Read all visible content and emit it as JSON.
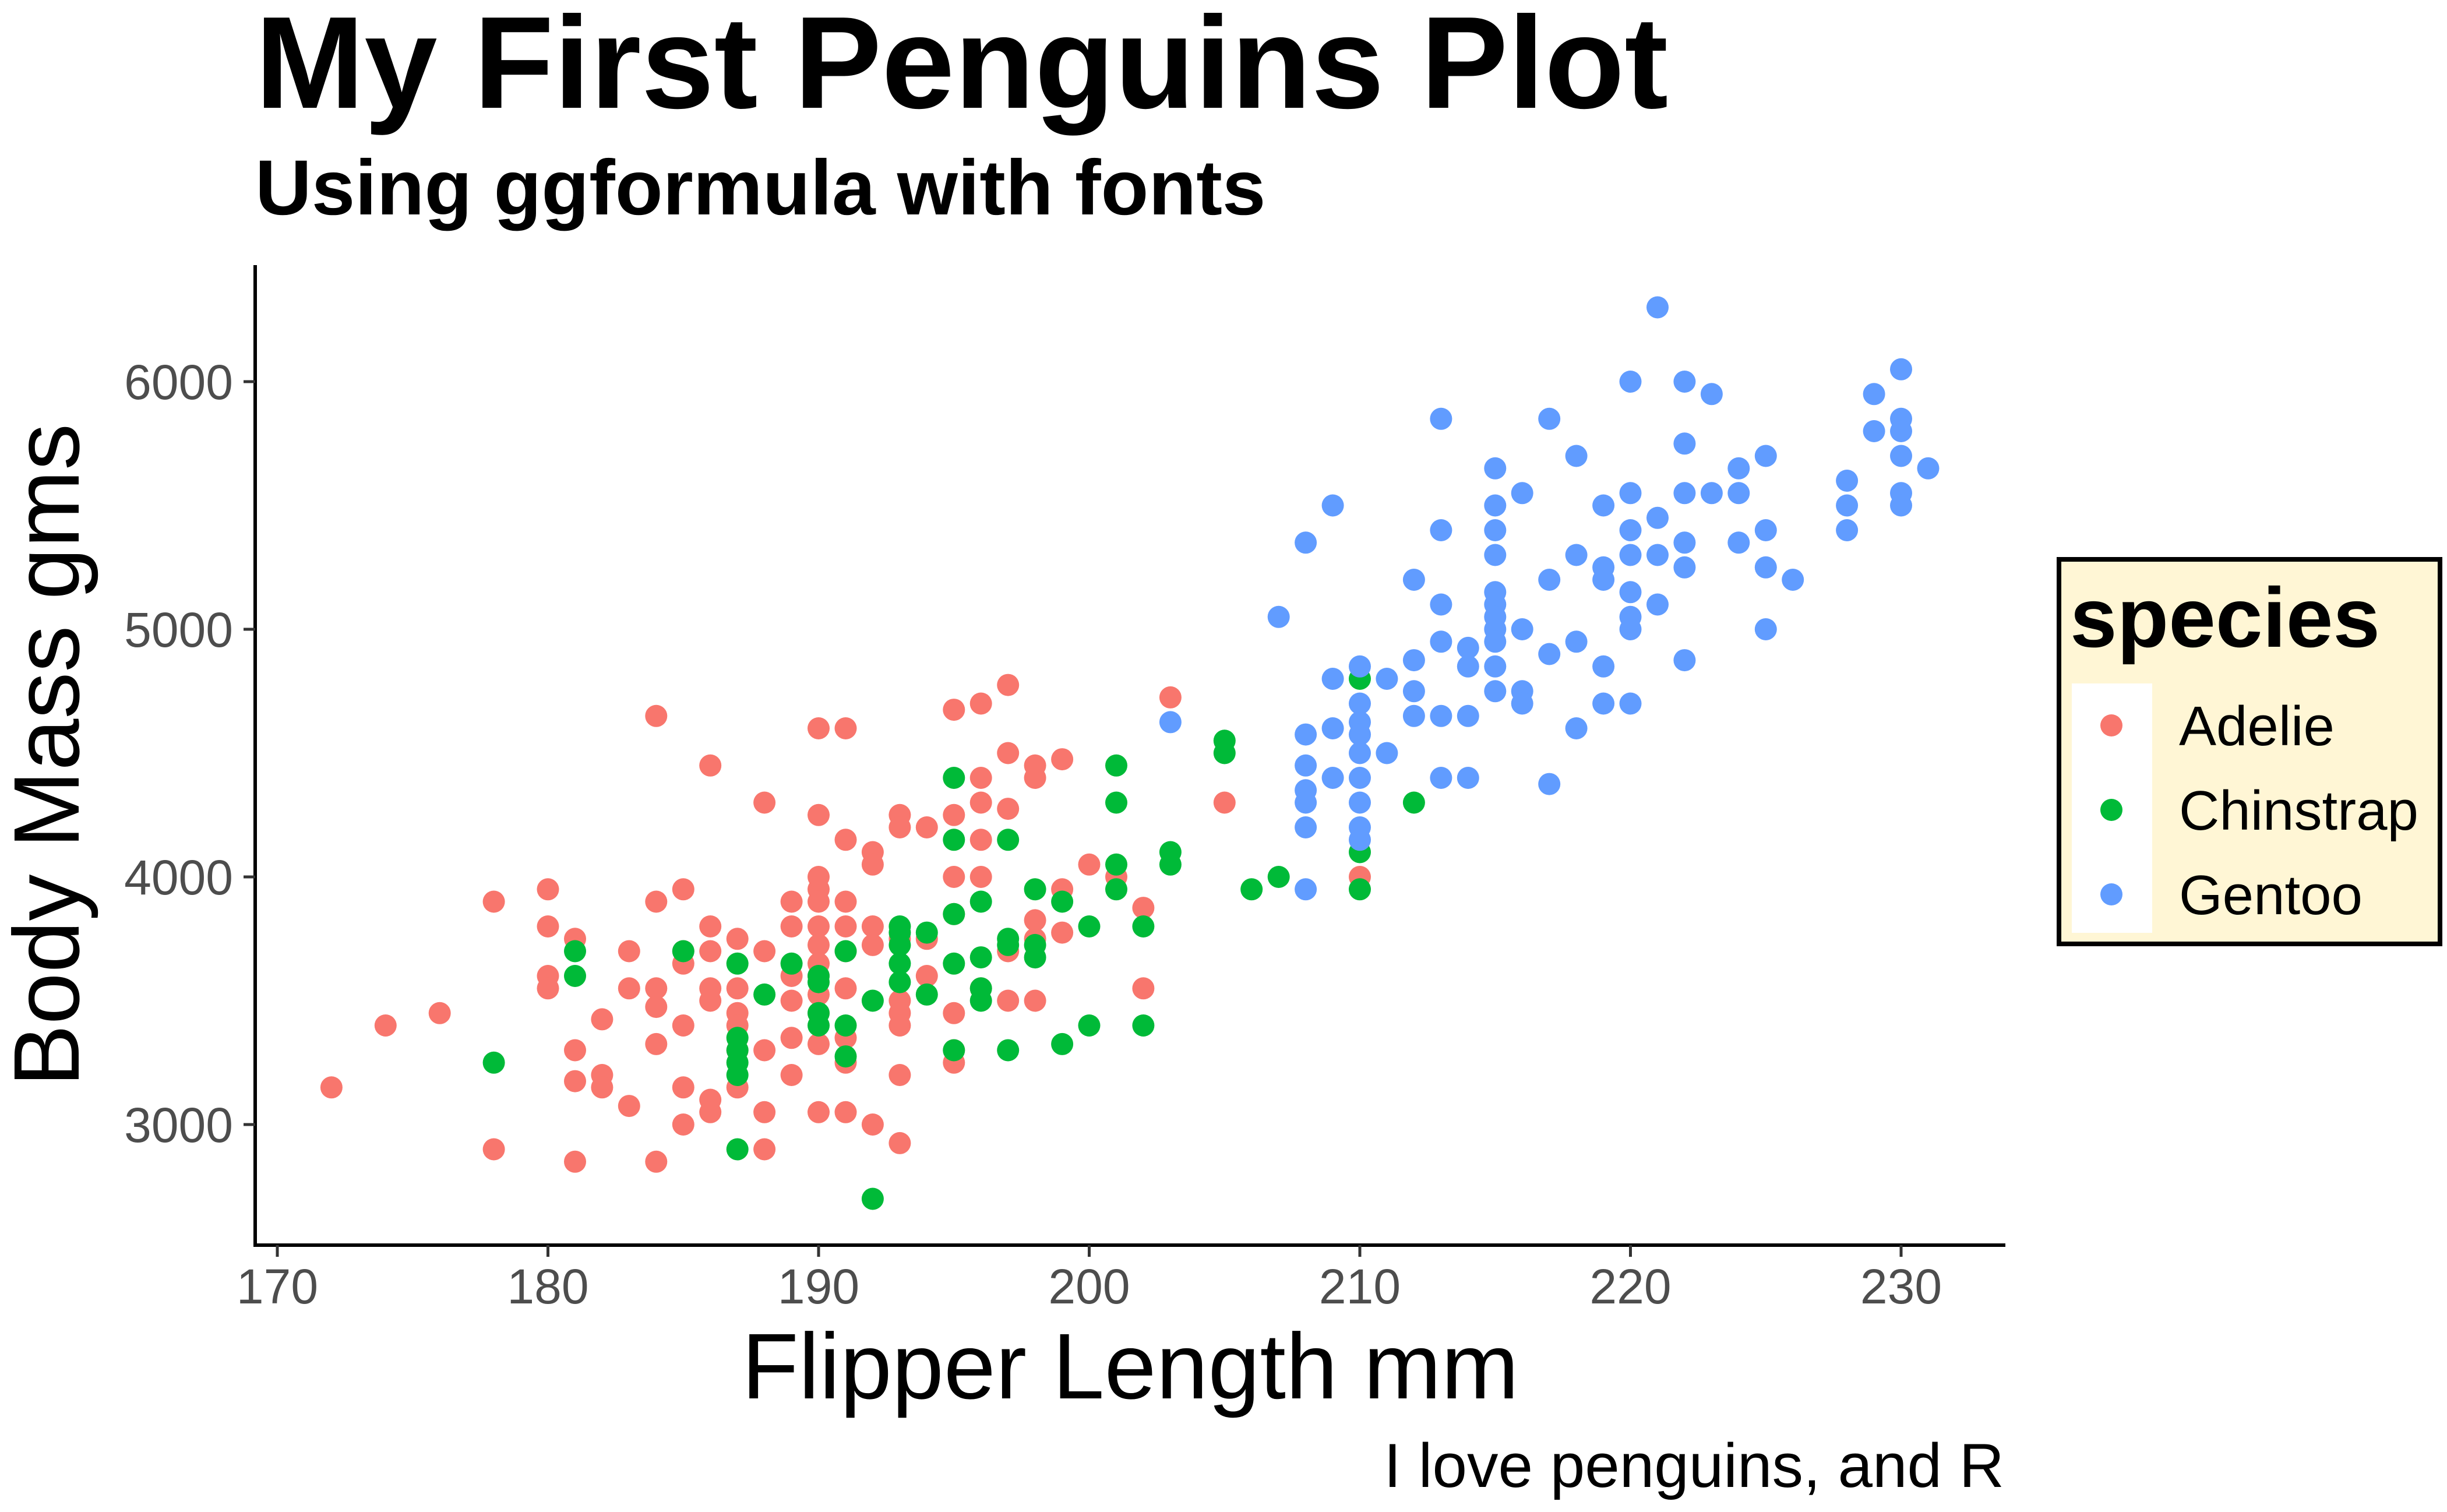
{
  "chart_data": {
    "type": "scatter",
    "title": "My First Penguins Plot",
    "subtitle": "Using ggformula with fonts",
    "caption": "I love penguins, and R",
    "xlabel": "Flipper Length mm",
    "ylabel": "Body Mass gms",
    "xlim": [
      169,
      234
    ],
    "ylim": [
      2550,
      6500
    ],
    "xticks": [
      170,
      180,
      190,
      200,
      210,
      220,
      230
    ],
    "yticks": [
      3000,
      4000,
      5000,
      6000
    ],
    "grid": false,
    "legend": {
      "title": "species",
      "position": "right",
      "background": "#fff6d5"
    },
    "series": [
      {
        "name": "Adelie",
        "color": "#f8766d",
        "points": [
          [
            172,
            3150
          ],
          [
            174,
            3400
          ],
          [
            176,
            3450
          ],
          [
            178,
            3900
          ],
          [
            178,
            2900
          ],
          [
            180,
            3950
          ],
          [
            180,
            3800
          ],
          [
            180,
            3600
          ],
          [
            180,
            3550
          ],
          [
            181,
            3750
          ],
          [
            181,
            3300
          ],
          [
            181,
            3175
          ],
          [
            181,
            2850
          ],
          [
            182,
            3425
          ],
          [
            182,
            3200
          ],
          [
            182,
            3150
          ],
          [
            183,
            3550
          ],
          [
            183,
            3075
          ],
          [
            184,
            4650
          ],
          [
            184,
            3900
          ],
          [
            184,
            3550
          ],
          [
            184,
            3475
          ],
          [
            184,
            3325
          ],
          [
            184,
            2850
          ],
          [
            185,
            3950
          ],
          [
            185,
            3700
          ],
          [
            185,
            3650
          ],
          [
            185,
            3400
          ],
          [
            185,
            3150
          ],
          [
            185,
            3000
          ],
          [
            186,
            4450
          ],
          [
            186,
            3800
          ],
          [
            186,
            3550
          ],
          [
            186,
            3500
          ],
          [
            186,
            3100
          ],
          [
            186,
            3050
          ],
          [
            187,
            3750
          ],
          [
            187,
            3550
          ],
          [
            187,
            3450
          ],
          [
            187,
            3300
          ],
          [
            187,
            3150
          ],
          [
            188,
            4300
          ],
          [
            188,
            3300
          ],
          [
            188,
            2900
          ],
          [
            188,
            3050
          ],
          [
            189,
            3900
          ],
          [
            189,
            3800
          ],
          [
            189,
            3500
          ],
          [
            189,
            3350
          ],
          [
            189,
            3200
          ],
          [
            190,
            4600
          ],
          [
            190,
            4250
          ],
          [
            190,
            3950
          ],
          [
            190,
            3900
          ],
          [
            190,
            3800
          ],
          [
            190,
            3725
          ],
          [
            190,
            3650
          ],
          [
            190,
            3600
          ],
          [
            190,
            3525
          ],
          [
            190,
            3450
          ],
          [
            190,
            3325
          ],
          [
            190,
            3050
          ],
          [
            191,
            4600
          ],
          [
            191,
            4150
          ],
          [
            191,
            3900
          ],
          [
            191,
            3800
          ],
          [
            191,
            3700
          ],
          [
            191,
            3550
          ],
          [
            191,
            3350
          ],
          [
            191,
            3250
          ],
          [
            191,
            3050
          ],
          [
            192,
            4100
          ],
          [
            192,
            4050
          ],
          [
            192,
            3725
          ],
          [
            192,
            3000
          ],
          [
            193,
            4250
          ],
          [
            193,
            4200
          ],
          [
            193,
            3750
          ],
          [
            193,
            3500
          ],
          [
            193,
            3450
          ],
          [
            193,
            3400
          ],
          [
            193,
            3200
          ],
          [
            193,
            2925
          ],
          [
            194,
            4200
          ],
          [
            194,
            3750
          ],
          [
            195,
            4675
          ],
          [
            195,
            4250
          ],
          [
            195,
            4000
          ],
          [
            195,
            3850
          ],
          [
            195,
            3450
          ],
          [
            195,
            3300
          ],
          [
            195,
            3250
          ],
          [
            196,
            4700
          ],
          [
            196,
            4400
          ],
          [
            196,
            4300
          ],
          [
            196,
            4150
          ],
          [
            196,
            4000
          ],
          [
            196,
            3550
          ],
          [
            197,
            4775
          ],
          [
            197,
            4500
          ],
          [
            197,
            4275
          ],
          [
            197,
            3700
          ],
          [
            197,
            3500
          ],
          [
            198,
            4450
          ],
          [
            198,
            4400
          ],
          [
            198,
            3825
          ],
          [
            198,
            3750
          ],
          [
            198,
            3500
          ],
          [
            199,
            4475
          ],
          [
            199,
            3950
          ],
          [
            199,
            3775
          ],
          [
            200,
            4050
          ],
          [
            201,
            4000
          ],
          [
            202,
            3875
          ],
          [
            202,
            3550
          ],
          [
            203,
            4725
          ],
          [
            205,
            4300
          ],
          [
            210,
            4000
          ],
          [
            190,
            4000
          ],
          [
            187,
            3400
          ],
          [
            189,
            3600
          ],
          [
            186,
            3700
          ],
          [
            194,
            3600
          ],
          [
            183,
            3700
          ],
          [
            188,
            3700
          ],
          [
            192,
            3800
          ]
        ]
      },
      {
        "name": "Chinstrap",
        "color": "#00ba38",
        "points": [
          [
            178,
            3250
          ],
          [
            181,
            3700
          ],
          [
            181,
            3600
          ],
          [
            185,
            3700
          ],
          [
            187,
            3650
          ],
          [
            187,
            3350
          ],
          [
            187,
            3300
          ],
          [
            187,
            3250
          ],
          [
            187,
            3200
          ],
          [
            187,
            2900
          ],
          [
            188,
            3525
          ],
          [
            189,
            3650
          ],
          [
            190,
            3600
          ],
          [
            190,
            3575
          ],
          [
            190,
            3450
          ],
          [
            190,
            3400
          ],
          [
            191,
            3400
          ],
          [
            191,
            3700
          ],
          [
            191,
            3275
          ],
          [
            192,
            3500
          ],
          [
            192,
            2700
          ],
          [
            193,
            3800
          ],
          [
            193,
            3775
          ],
          [
            193,
            3725
          ],
          [
            193,
            3650
          ],
          [
            193,
            3575
          ],
          [
            194,
            3775
          ],
          [
            194,
            3525
          ],
          [
            195,
            4400
          ],
          [
            195,
            4150
          ],
          [
            195,
            3850
          ],
          [
            195,
            3650
          ],
          [
            195,
            3300
          ],
          [
            196,
            3900
          ],
          [
            196,
            3675
          ],
          [
            196,
            3550
          ],
          [
            196,
            3500
          ],
          [
            197,
            4150
          ],
          [
            197,
            3750
          ],
          [
            197,
            3725
          ],
          [
            197,
            3300
          ],
          [
            198,
            3950
          ],
          [
            198,
            3725
          ],
          [
            198,
            3675
          ],
          [
            199,
            3900
          ],
          [
            199,
            3325
          ],
          [
            200,
            3800
          ],
          [
            200,
            3400
          ],
          [
            201,
            4450
          ],
          [
            201,
            4300
          ],
          [
            201,
            4050
          ],
          [
            201,
            3950
          ],
          [
            202,
            3800
          ],
          [
            202,
            3400
          ],
          [
            203,
            4100
          ],
          [
            203,
            4050
          ],
          [
            205,
            4550
          ],
          [
            205,
            4500
          ],
          [
            206,
            3950
          ],
          [
            207,
            4000
          ],
          [
            210,
            4800
          ],
          [
            210,
            4100
          ],
          [
            210,
            3950
          ],
          [
            212,
            4300
          ]
        ]
      },
      {
        "name": "Gentoo",
        "color": "#619cff",
        "points": [
          [
            203,
            4625
          ],
          [
            207,
            5050
          ],
          [
            208,
            5350
          ],
          [
            208,
            4575
          ],
          [
            208,
            4450
          ],
          [
            208,
            4350
          ],
          [
            208,
            4300
          ],
          [
            208,
            4200
          ],
          [
            208,
            3950
          ],
          [
            209,
            5500
          ],
          [
            209,
            4800
          ],
          [
            209,
            4600
          ],
          [
            209,
            4400
          ],
          [
            210,
            4850
          ],
          [
            210,
            4700
          ],
          [
            210,
            4625
          ],
          [
            210,
            4575
          ],
          [
            210,
            4500
          ],
          [
            210,
            4400
          ],
          [
            210,
            4300
          ],
          [
            210,
            4200
          ],
          [
            210,
            4150
          ],
          [
            211,
            4800
          ],
          [
            211,
            4500
          ],
          [
            212,
            5200
          ],
          [
            212,
            4875
          ],
          [
            212,
            4750
          ],
          [
            212,
            4650
          ],
          [
            213,
            5850
          ],
          [
            213,
            5400
          ],
          [
            213,
            5100
          ],
          [
            213,
            4950
          ],
          [
            213,
            4650
          ],
          [
            213,
            4400
          ],
          [
            214,
            4925
          ],
          [
            214,
            4850
          ],
          [
            214,
            4650
          ],
          [
            214,
            4400
          ],
          [
            215,
            5650
          ],
          [
            215,
            5500
          ],
          [
            215,
            5400
          ],
          [
            215,
            5300
          ],
          [
            215,
            5150
          ],
          [
            215,
            5100
          ],
          [
            215,
            5050
          ],
          [
            215,
            5000
          ],
          [
            215,
            4950
          ],
          [
            215,
            4850
          ],
          [
            215,
            4750
          ],
          [
            216,
            5550
          ],
          [
            216,
            5000
          ],
          [
            216,
            4750
          ],
          [
            216,
            4700
          ],
          [
            217,
            5850
          ],
          [
            217,
            5200
          ],
          [
            217,
            4900
          ],
          [
            217,
            4375
          ],
          [
            218,
            5700
          ],
          [
            218,
            5300
          ],
          [
            218,
            4950
          ],
          [
            218,
            4600
          ],
          [
            219,
            5500
          ],
          [
            219,
            5250
          ],
          [
            219,
            5200
          ],
          [
            219,
            4850
          ],
          [
            219,
            4700
          ],
          [
            220,
            6000
          ],
          [
            220,
            5550
          ],
          [
            220,
            5400
          ],
          [
            220,
            5300
          ],
          [
            220,
            5150
          ],
          [
            220,
            5050
          ],
          [
            220,
            5000
          ],
          [
            220,
            4700
          ],
          [
            221,
            6300
          ],
          [
            221,
            5450
          ],
          [
            221,
            5300
          ],
          [
            221,
            5100
          ],
          [
            222,
            6000
          ],
          [
            222,
            5750
          ],
          [
            222,
            5550
          ],
          [
            222,
            5350
          ],
          [
            222,
            5250
          ],
          [
            222,
            4875
          ],
          [
            223,
            5950
          ],
          [
            223,
            5550
          ],
          [
            224,
            5650
          ],
          [
            224,
            5550
          ],
          [
            224,
            5350
          ],
          [
            225,
            5700
          ],
          [
            225,
            5400
          ],
          [
            225,
            5250
          ],
          [
            225,
            5000
          ],
          [
            226,
            5200
          ],
          [
            228,
            5600
          ],
          [
            228,
            5500
          ],
          [
            228,
            5400
          ],
          [
            229,
            5950
          ],
          [
            229,
            5800
          ],
          [
            230,
            6050
          ],
          [
            230,
            5850
          ],
          [
            230,
            5800
          ],
          [
            230,
            5700
          ],
          [
            230,
            5550
          ],
          [
            230,
            5500
          ],
          [
            231,
            5650
          ]
        ]
      }
    ]
  }
}
